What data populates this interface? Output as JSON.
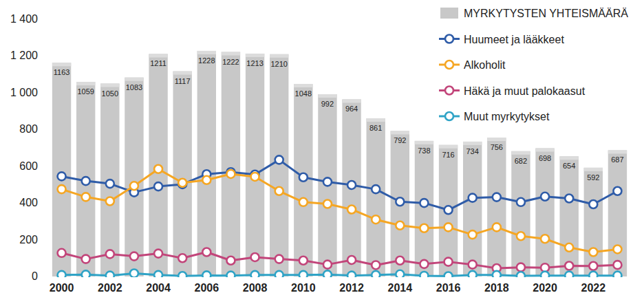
{
  "chart_data": {
    "type": "bar",
    "categories": [
      "2000",
      null,
      "2002",
      null,
      "2004",
      null,
      "2006",
      null,
      "2008",
      null,
      "2010",
      null,
      "2012",
      null,
      "2014",
      null,
      "2016",
      null,
      "2018",
      null,
      "2020",
      null,
      "2022",
      null
    ],
    "series": [
      {
        "name": "MYRKYTYSTEN YHTEISMÄÄRÄ",
        "type": "bar",
        "color": "#c8c8c8",
        "values": [
          1163,
          1059,
          1050,
          1083,
          1211,
          1117,
          1228,
          1222,
          1213,
          1210,
          1048,
          992,
          964,
          861,
          792,
          738,
          716,
          734,
          756,
          682,
          698,
          654,
          592,
          687
        ]
      },
      {
        "name": "Huumeet ja lääkkeet",
        "type": "line",
        "color": "#2f5ca8",
        "marker": "circle",
        "values": [
          545,
          520,
          505,
          458,
          490,
          502,
          557,
          568,
          555,
          635,
          540,
          515,
          498,
          475,
          407,
          400,
          362,
          428,
          432,
          405,
          435,
          425,
          393,
          465
        ]
      },
      {
        "name": "Alkoholit",
        "type": "line",
        "color": "#f5a623",
        "marker": "circle",
        "values": [
          475,
          433,
          410,
          493,
          585,
          510,
          525,
          558,
          543,
          465,
          405,
          395,
          365,
          310,
          278,
          263,
          268,
          228,
          268,
          220,
          205,
          158,
          133,
          148
        ]
      },
      {
        "name": "Häkä ja muut palokaasut",
        "type": "line",
        "color": "#c2457a",
        "marker": "circle",
        "values": [
          128,
          95,
          122,
          110,
          125,
          100,
          133,
          87,
          105,
          95,
          87,
          65,
          90,
          62,
          87,
          68,
          80,
          65,
          45,
          50,
          48,
          58,
          57,
          63
        ]
      },
      {
        "name": "Muut myrkytykset",
        "type": "line",
        "color": "#2fa3c6",
        "marker": "circle",
        "values": [
          8,
          10,
          5,
          17,
          8,
          3,
          6,
          5,
          8,
          8,
          8,
          10,
          5,
          8,
          12,
          4,
          2,
          8,
          8,
          3,
          5,
          5,
          5,
          5
        ]
      }
    ],
    "ylim": [
      0,
      1400
    ],
    "yticks": [
      0,
      200,
      400,
      600,
      800,
      {
        "value": 1000,
        "label": "1 000"
      },
      {
        "value": 1200,
        "label": "1 200"
      },
      {
        "value": 1400,
        "label": "1 400"
      }
    ],
    "grid": false,
    "data_labels": true,
    "legend": "top-right"
  }
}
